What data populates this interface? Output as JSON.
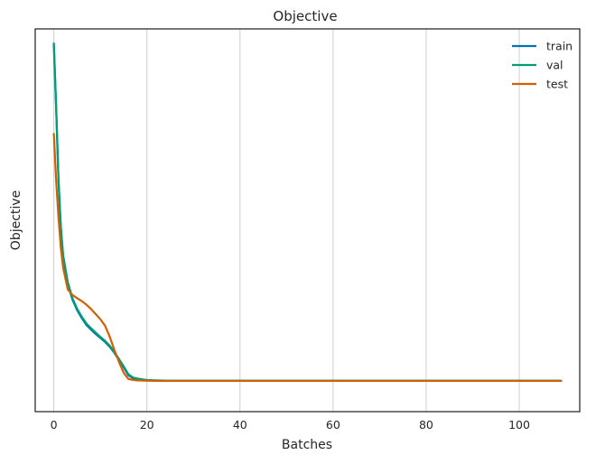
{
  "chart_data": {
    "type": "line",
    "title": "Objective",
    "xlabel": "Batches",
    "ylabel": "Objective",
    "xlim": [
      -4,
      113
    ],
    "ylim": [
      0,
      1
    ],
    "x_ticks": [
      0,
      20,
      40,
      60,
      80,
      100
    ],
    "y_ticks": [],
    "grid": "vertical",
    "legend_position": "top-right",
    "series": [
      {
        "name": "train",
        "color": "#0173b2",
        "x": [
          0,
          0.5,
          1,
          1.5,
          2,
          3,
          4,
          5,
          6,
          7,
          8,
          9,
          10,
          11,
          12,
          13,
          14,
          15,
          16,
          17,
          18,
          20,
          22,
          25,
          30,
          40,
          60,
          80,
          100,
          109
        ],
        "y": [
          0.977,
          0.8,
          0.6,
          0.47,
          0.39,
          0.315,
          0.272,
          0.243,
          0.221,
          0.202,
          0.189,
          0.177,
          0.166,
          0.155,
          0.142,
          0.125,
          0.105,
          0.085,
          0.063,
          0.055,
          0.052,
          0.049,
          0.048,
          0.0475,
          0.0475,
          0.0475,
          0.0475,
          0.0475,
          0.0475,
          0.0475
        ]
      },
      {
        "name": "val",
        "color": "#029e73",
        "x": [
          0,
          0.5,
          1,
          1.5,
          2,
          3,
          4,
          5,
          6,
          7,
          8,
          9,
          10,
          11,
          12,
          13,
          14,
          15,
          16,
          17,
          18,
          20,
          22,
          25,
          30,
          40,
          60,
          80,
          100,
          109
        ],
        "y": [
          0.98,
          0.805,
          0.605,
          0.475,
          0.395,
          0.32,
          0.276,
          0.247,
          0.225,
          0.206,
          0.193,
          0.181,
          0.169,
          0.158,
          0.145,
          0.128,
          0.108,
          0.088,
          0.066,
          0.057,
          0.054,
          0.05,
          0.049,
          0.048,
          0.048,
          0.048,
          0.048,
          0.048,
          0.048,
          0.048
        ]
      },
      {
        "name": "test",
        "color": "#d55e00",
        "x": [
          0,
          0.5,
          1,
          1.5,
          2,
          3,
          4,
          5,
          6,
          7,
          8,
          9,
          10,
          11,
          12,
          13,
          14,
          15,
          16,
          17,
          18,
          20,
          22,
          25,
          30,
          40,
          60,
          80,
          100,
          109
        ],
        "y": [
          0.73,
          0.6,
          0.5,
          0.415,
          0.36,
          0.3,
          0.285,
          0.276,
          0.268,
          0.258,
          0.246,
          0.232,
          0.218,
          0.2,
          0.17,
          0.133,
          0.1,
          0.07,
          0.053,
          0.05,
          0.049,
          0.048,
          0.0478,
          0.0475,
          0.0475,
          0.0475,
          0.0475,
          0.0475,
          0.0475,
          0.0475
        ]
      }
    ]
  }
}
